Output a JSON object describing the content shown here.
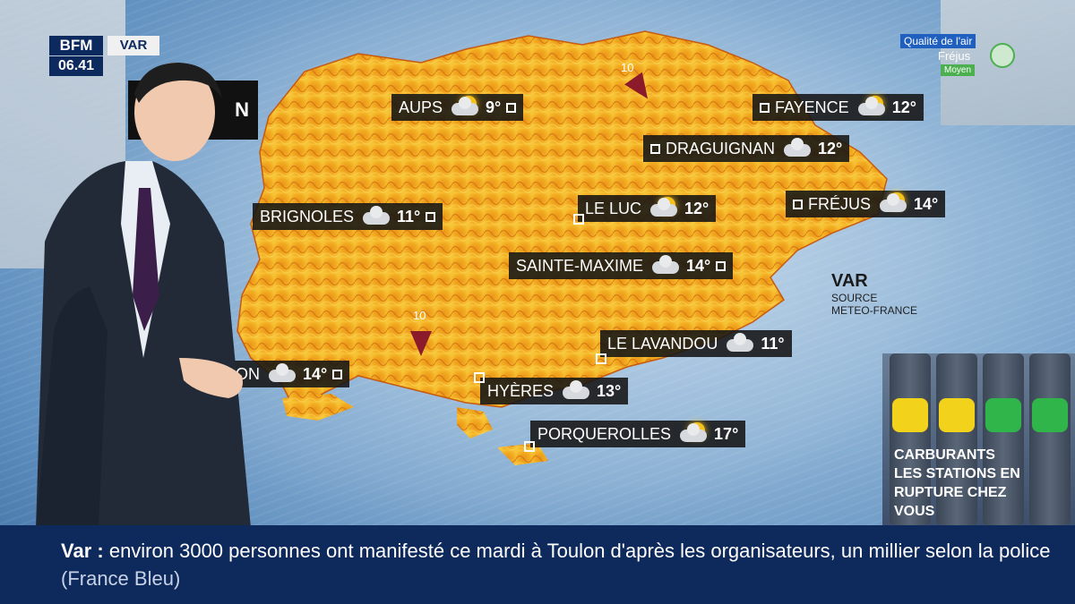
{
  "broadcast": {
    "logo": "BFM",
    "channel": "VAR",
    "time": "06.41"
  },
  "air_quality": {
    "title": "Qualité de l'air",
    "city": "Fréjus",
    "level": "Moyen"
  },
  "map": {
    "header_fragment": "N",
    "legend_title": "VAR",
    "source_line1": "SOURCE",
    "source_line2": "METEO-FRANCE",
    "wind_markers": [
      {
        "speed": "10"
      },
      {
        "speed": "10"
      }
    ],
    "cities": [
      {
        "name": "AUPS",
        "temp": "9°",
        "icon": "sun-cloud-icon"
      },
      {
        "name": "FAYENCE",
        "temp": "12°",
        "icon": "sun-cloud-icon"
      },
      {
        "name": "DRAGUIGNAN",
        "temp": "12°",
        "icon": "cloud-icon"
      },
      {
        "name": "BRIGNOLES",
        "temp": "11°",
        "icon": "cloud-icon"
      },
      {
        "name": "LE LUC",
        "temp": "12°",
        "icon": "sun-cloud-icon"
      },
      {
        "name": "FRÉJUS",
        "temp": "14°",
        "icon": "sun-cloud-icon"
      },
      {
        "name": "SAINTE-MAXIME",
        "temp": "14°",
        "icon": "cloud-icon"
      },
      {
        "name": "LE LAVANDOU",
        "temp": "11°",
        "icon": "cloud-icon"
      },
      {
        "name": "ON",
        "temp": "14°",
        "icon": "cloud-icon"
      },
      {
        "name": "HYÈRES",
        "temp": "13°",
        "icon": "cloud-icon"
      },
      {
        "name": "PORQUEROLLES",
        "temp": "17°",
        "icon": "sun-cloud-icon"
      }
    ]
  },
  "promo": {
    "line1": "CARBURANTS",
    "line2": "LES STATIONS EN",
    "line3": "RUPTURE CHEZ",
    "line4": "VOUS"
  },
  "ticker": {
    "label": "Var :",
    "text": "environ 3000 personnes ont manifesté ce mardi à Toulon d'après les organisateurs, un millier selon la police",
    "source": "(France Bleu)"
  }
}
